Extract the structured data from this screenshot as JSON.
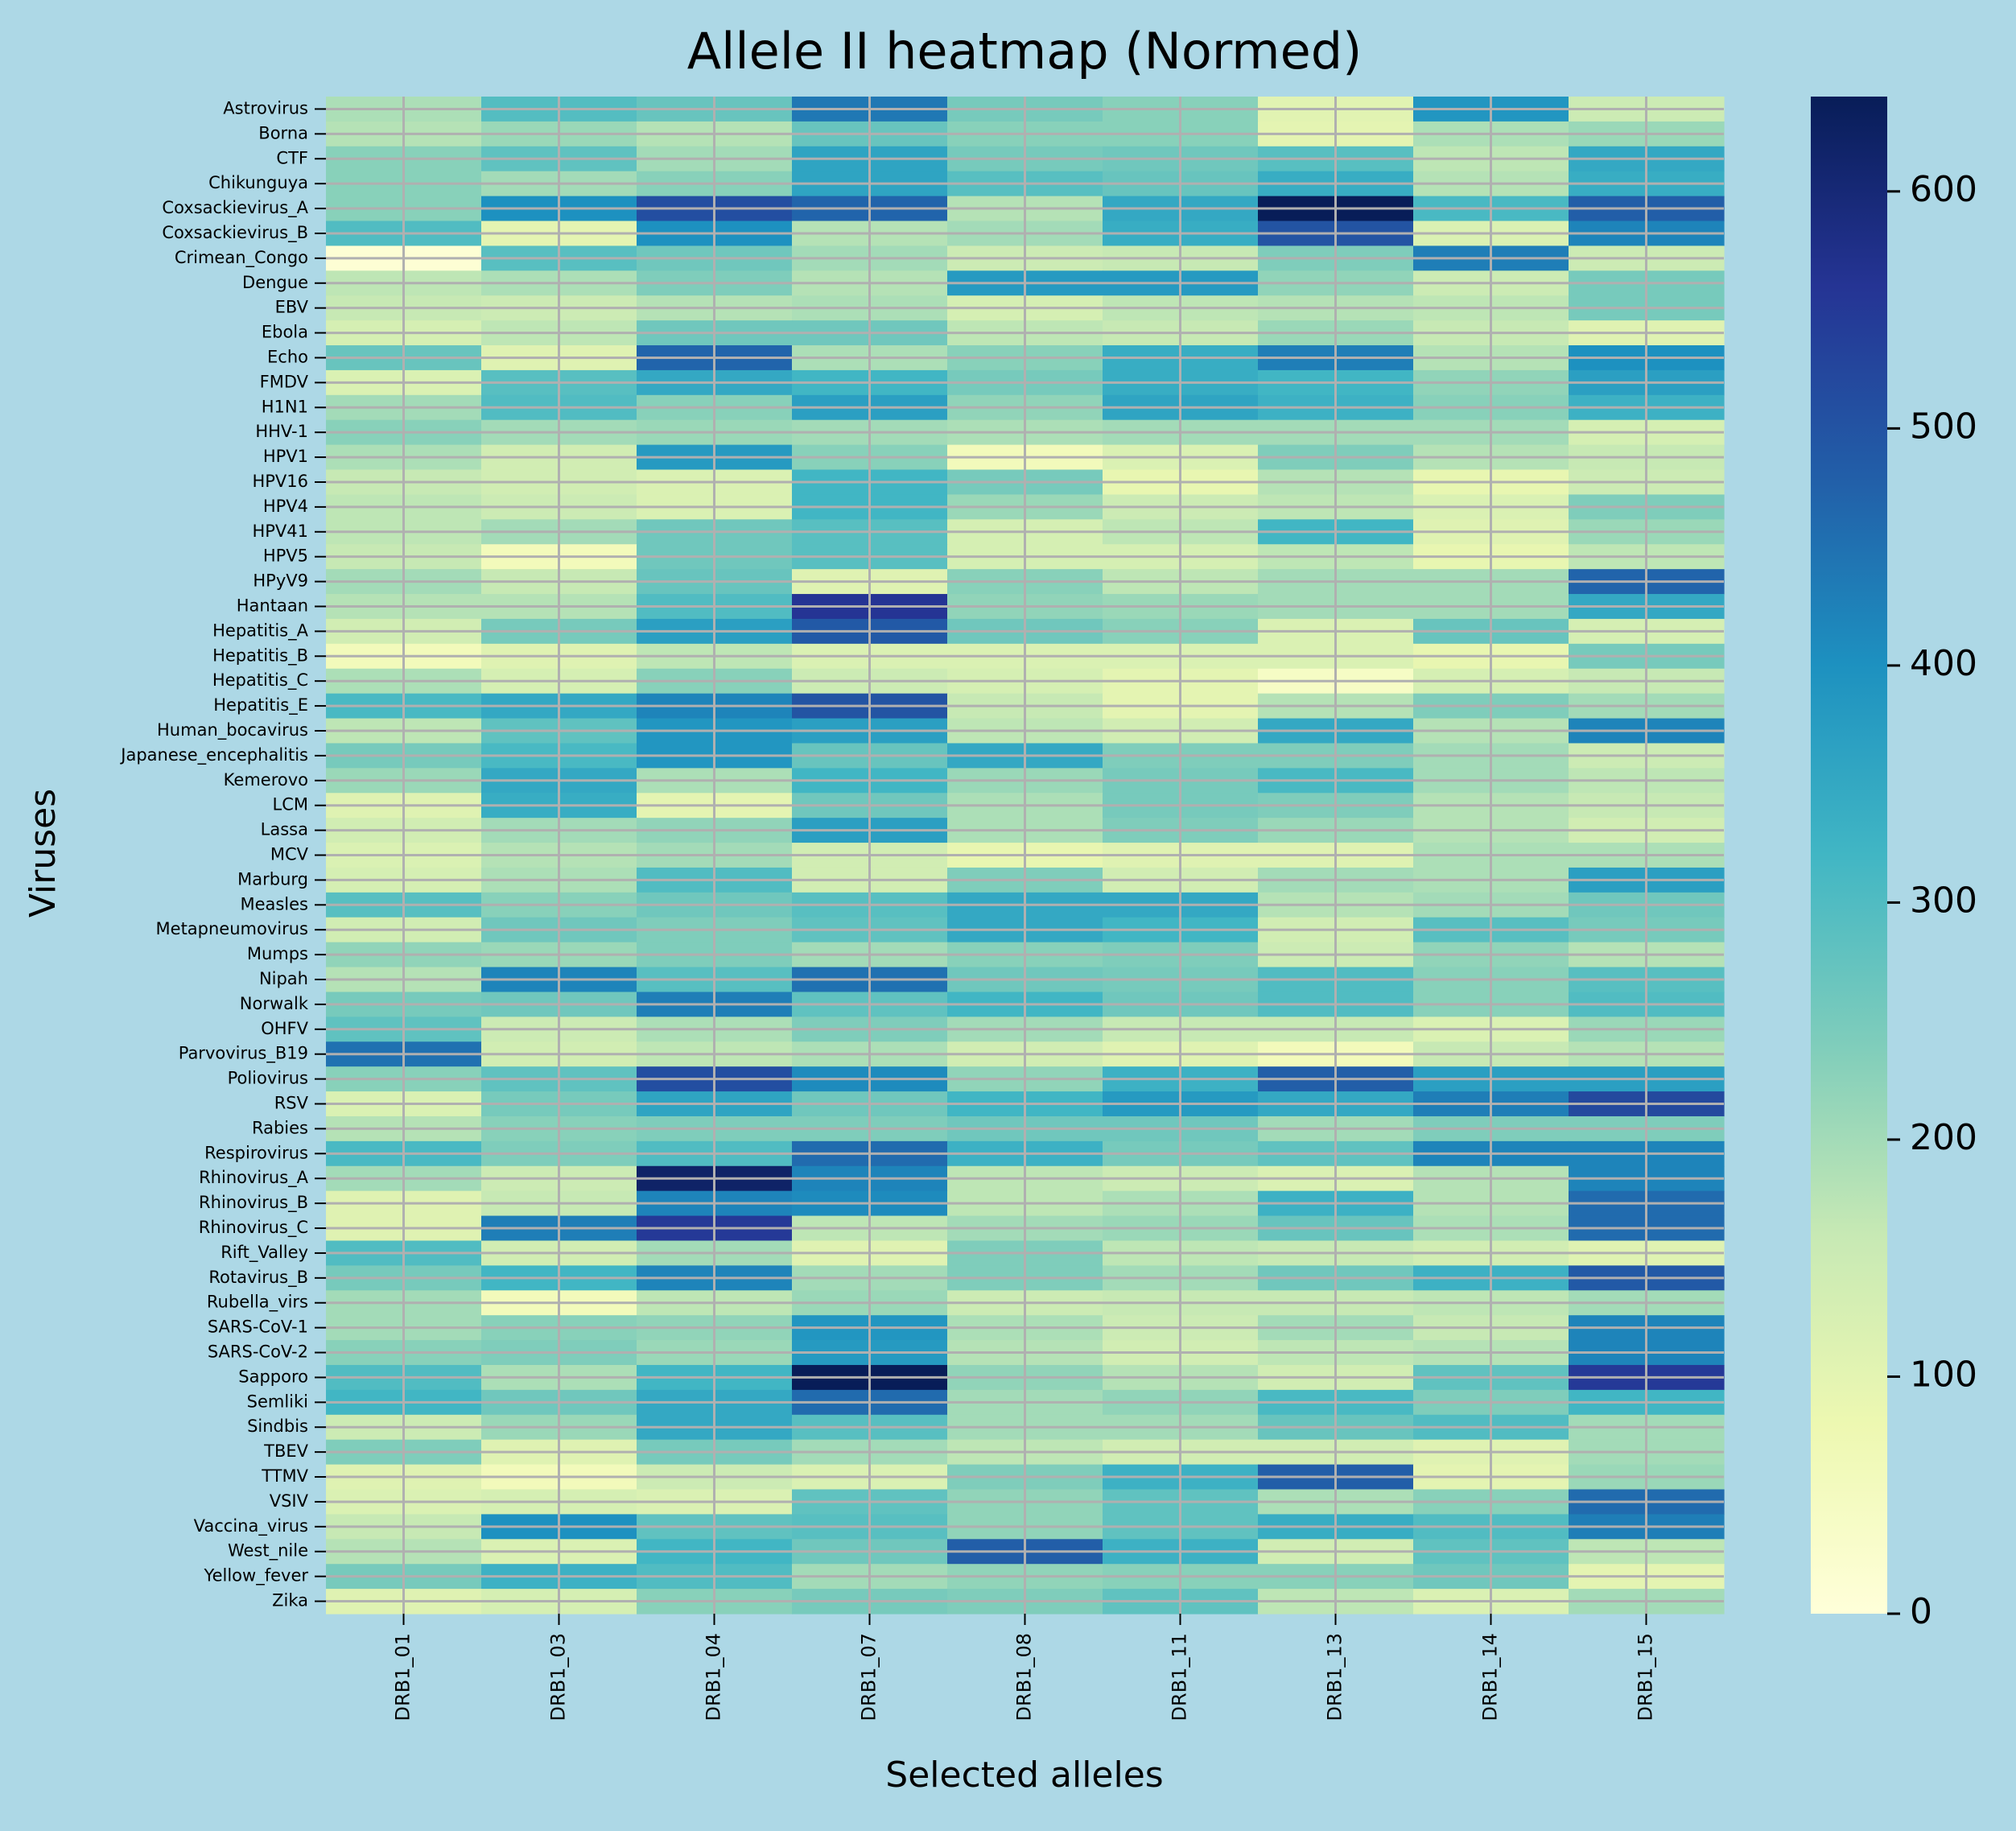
{
  "chart_data": {
    "type": "heatmap",
    "title": "Allele II heatmap (Normed)",
    "xlabel": "Selected alleles",
    "ylabel": "Viruses",
    "colormap": "YlGnBu",
    "vmin": 0,
    "vmax": 640,
    "colorbar_ticks": [
      0,
      100,
      200,
      300,
      400,
      500,
      600
    ],
    "grid": true,
    "grid_color": "#b0b0b0",
    "background_color": "#add8e6",
    "columns": [
      "DRB1_01",
      "DRB1_03",
      "DRB1_04",
      "DRB1_07",
      "DRB1_08",
      "DRB1_11",
      "DRB1_13",
      "DRB1_14",
      "DRB1_15"
    ],
    "rows": [
      "Astrovirus",
      "Borna",
      "CTF",
      "Chikunguya",
      "Coxsackievirus_A",
      "Coxsackievirus_B",
      "Crimean_Congo",
      "Dengue",
      "EBV",
      "Ebola",
      "Echo",
      "FMDV",
      "H1N1",
      "HHV-1",
      "HPV1",
      "HPV16",
      "HPV4",
      "HPV41",
      "HPV5",
      "HPyV9",
      "Hantaan",
      "Hepatitis_A",
      "Hepatitis_B",
      "Hepatitis_C",
      "Hepatitis_E",
      "Human_bocavirus",
      "Japanese_encephalitis",
      "Kemerovo",
      "LCM",
      "Lassa",
      "MCV",
      "Marburg",
      "Measles",
      "Metapneumovirus",
      "Mumps",
      "Nipah",
      "Norwalk",
      "OHFV",
      "Parvovirus_B19",
      "Poliovirus",
      "RSV",
      "Rabies",
      "Respirovirus",
      "Rhinovirus_A",
      "Rhinovirus_B",
      "Rhinovirus_C",
      "Rift_Valley",
      "Rotavirus_B",
      "Rubella_virs",
      "SARS-CoV-1",
      "SARS-CoV-2",
      "Sapporo",
      "Semliki",
      "Sindbis",
      "TBEV",
      "TTMV",
      "VSIV",
      "Vaccina_virus",
      "West_nile",
      "Yellow_fever",
      "Zika"
    ],
    "values": [
      [
        190,
        295,
        270,
        440,
        250,
        230,
        105,
        390,
        150
      ],
      [
        180,
        210,
        180,
        270,
        230,
        230,
        100,
        190,
        210
      ],
      [
        230,
        280,
        200,
        360,
        250,
        260,
        290,
        170,
        350
      ],
      [
        230,
        200,
        230,
        360,
        290,
        270,
        340,
        180,
        340
      ],
      [
        230,
        400,
        510,
        470,
        180,
        350,
        640,
        310,
        480
      ],
      [
        300,
        100,
        400,
        180,
        200,
        340,
        500,
        120,
        420
      ],
      [
        10,
        290,
        260,
        200,
        150,
        160,
        240,
        430,
        150
      ],
      [
        170,
        190,
        240,
        180,
        380,
        380,
        220,
        150,
        250
      ],
      [
        160,
        150,
        180,
        190,
        130,
        170,
        180,
        170,
        250
      ],
      [
        130,
        170,
        260,
        260,
        170,
        160,
        210,
        160,
        110
      ],
      [
        270,
        110,
        470,
        190,
        230,
        340,
        430,
        180,
        400
      ],
      [
        120,
        290,
        350,
        320,
        250,
        340,
        320,
        220,
        370
      ],
      [
        200,
        300,
        230,
        370,
        220,
        360,
        330,
        230,
        330
      ],
      [
        230,
        200,
        210,
        200,
        190,
        200,
        200,
        200,
        130
      ],
      [
        190,
        140,
        380,
        230,
        60,
        120,
        240,
        180,
        160
      ],
      [
        160,
        140,
        120,
        320,
        250,
        90,
        180,
        90,
        150
      ],
      [
        170,
        150,
        120,
        320,
        210,
        150,
        170,
        120,
        240
      ],
      [
        170,
        200,
        260,
        290,
        130,
        170,
        320,
        110,
        210
      ],
      [
        160,
        60,
        260,
        290,
        130,
        130,
        170,
        90,
        170
      ],
      [
        200,
        160,
        270,
        110,
        230,
        170,
        200,
        200,
        470
      ],
      [
        180,
        180,
        300,
        560,
        220,
        210,
        200,
        200,
        350
      ],
      [
        140,
        250,
        370,
        490,
        260,
        230,
        120,
        270,
        130
      ],
      [
        60,
        110,
        170,
        120,
        120,
        120,
        120,
        90,
        250
      ],
      [
        190,
        130,
        230,
        150,
        130,
        100,
        40,
        130,
        160
      ],
      [
        310,
        350,
        420,
        500,
        160,
        100,
        180,
        240,
        200
      ],
      [
        170,
        280,
        390,
        370,
        170,
        140,
        350,
        180,
        420
      ],
      [
        250,
        310,
        390,
        270,
        350,
        240,
        240,
        200,
        150
      ],
      [
        210,
        350,
        190,
        320,
        210,
        250,
        310,
        200,
        170
      ],
      [
        110,
        340,
        100,
        260,
        190,
        250,
        240,
        180,
        160
      ],
      [
        140,
        200,
        220,
        370,
        190,
        240,
        210,
        180,
        140
      ],
      [
        120,
        180,
        200,
        140,
        90,
        110,
        110,
        190,
        190
      ],
      [
        130,
        190,
        300,
        140,
        240,
        140,
        200,
        190,
        370
      ],
      [
        290,
        230,
        260,
        290,
        350,
        350,
        180,
        200,
        260
      ],
      [
        140,
        260,
        240,
        280,
        350,
        320,
        140,
        290,
        250
      ],
      [
        220,
        210,
        240,
        200,
        230,
        240,
        150,
        220,
        180
      ],
      [
        180,
        420,
        290,
        450,
        260,
        250,
        300,
        230,
        290
      ],
      [
        250,
        260,
        430,
        280,
        320,
        260,
        300,
        230,
        300
      ],
      [
        280,
        150,
        190,
        240,
        200,
        160,
        160,
        120,
        210
      ],
      [
        450,
        140,
        170,
        190,
        140,
        110,
        60,
        160,
        180
      ],
      [
        230,
        280,
        510,
        410,
        220,
        330,
        480,
        370,
        370
      ],
      [
        120,
        250,
        360,
        260,
        320,
        380,
        350,
        430,
        520
      ],
      [
        180,
        230,
        240,
        240,
        260,
        260,
        200,
        240,
        240
      ],
      [
        310,
        240,
        300,
        460,
        330,
        250,
        280,
        420,
        420
      ],
      [
        200,
        150,
        620,
        420,
        170,
        150,
        120,
        180,
        420
      ],
      [
        110,
        160,
        420,
        410,
        170,
        190,
        330,
        180,
        460
      ],
      [
        110,
        430,
        550,
        170,
        200,
        210,
        270,
        190,
        460
      ],
      [
        300,
        140,
        200,
        110,
        240,
        170,
        160,
        140,
        110
      ],
      [
        250,
        320,
        420,
        200,
        240,
        200,
        260,
        330,
        490
      ],
      [
        200,
        60,
        170,
        210,
        150,
        160,
        160,
        170,
        200
      ],
      [
        200,
        230,
        220,
        390,
        190,
        150,
        200,
        160,
        420
      ],
      [
        230,
        240,
        210,
        380,
        180,
        140,
        170,
        180,
        420
      ],
      [
        300,
        190,
        320,
        640,
        220,
        180,
        140,
        280,
        550
      ],
      [
        320,
        260,
        350,
        460,
        200,
        220,
        310,
        240,
        320
      ],
      [
        150,
        210,
        350,
        290,
        200,
        200,
        270,
        300,
        200
      ],
      [
        240,
        110,
        250,
        200,
        170,
        140,
        140,
        110,
        200
      ],
      [
        110,
        60,
        150,
        120,
        240,
        330,
        480,
        100,
        210
      ],
      [
        120,
        130,
        120,
        280,
        220,
        280,
        190,
        230,
        460
      ],
      [
        160,
        400,
        280,
        290,
        220,
        280,
        340,
        300,
        430
      ],
      [
        180,
        120,
        320,
        260,
        480,
        330,
        140,
        280,
        170
      ],
      [
        250,
        330,
        300,
        200,
        220,
        230,
        230,
        260,
        100
      ],
      [
        110,
        130,
        230,
        250,
        240,
        280,
        170,
        120,
        200
      ]
    ]
  }
}
